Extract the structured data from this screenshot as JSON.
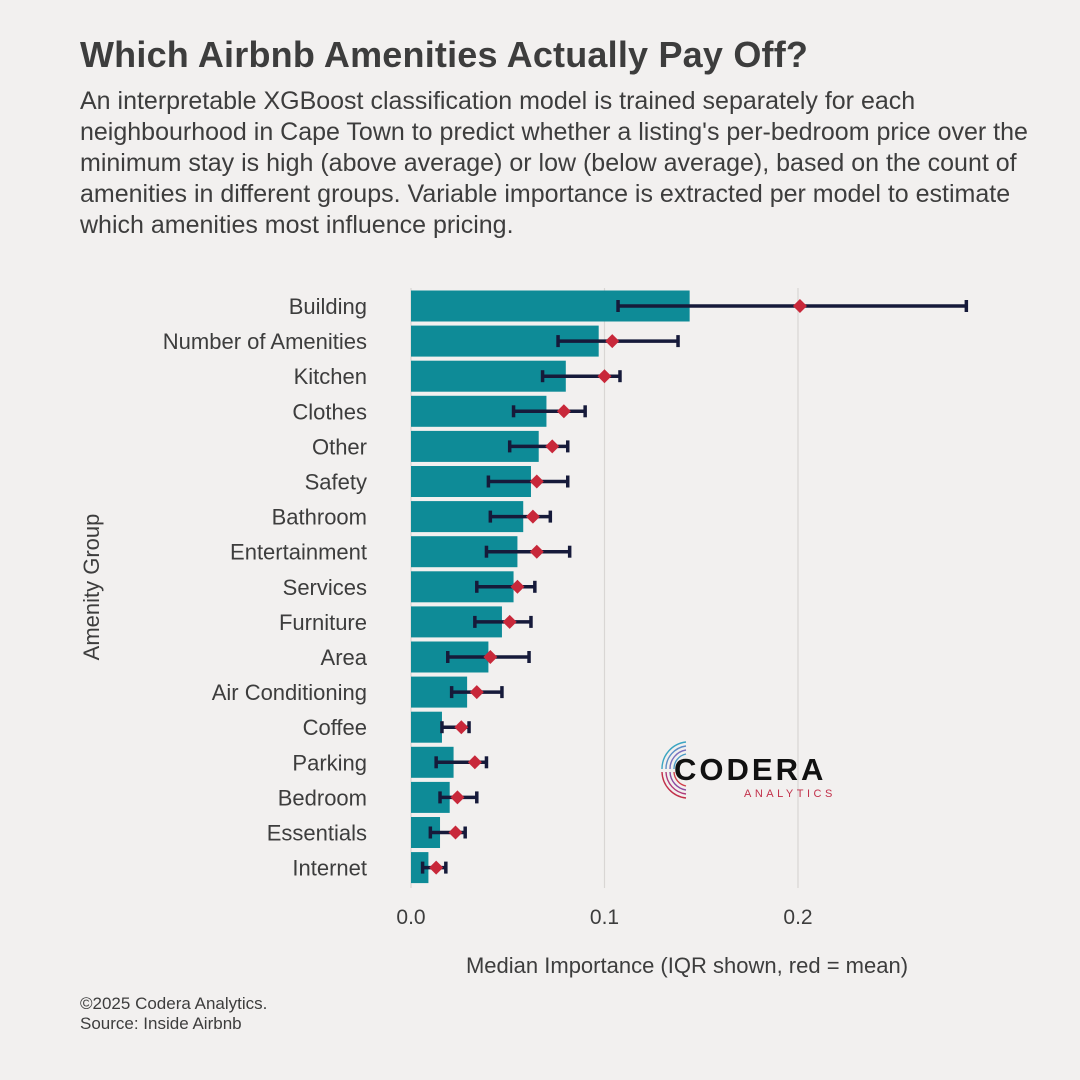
{
  "header": {
    "title": "Which Airbnb Amenities Actually Pay Off?",
    "subtitle": "An interpretable XGBoost classification model is trained separately for each neighbourhood in Cape Town to predict whether a listing's per-bedroom price over the minimum stay is high (above average) or low (below average), based on the count of amenities in different groups. Variable importance is extracted per model to estimate which amenities most influence pricing."
  },
  "footer": {
    "copyright": "©2025 Codera Analytics.",
    "source": "Source: Inside Airbnb"
  },
  "logo": {
    "name": "CODERA",
    "tagline": "ANALYTICS"
  },
  "colors": {
    "background": "#f2f0ef",
    "bar": "#0e8b97",
    "error_bar": "#161a3a",
    "mean_marker": "#c8283a",
    "grid": "#d9d6d4"
  },
  "chart_data": {
    "type": "bar",
    "orientation": "horizontal",
    "xlabel": "Median Importance (IQR shown, red = mean)",
    "ylabel": "Amenity Group",
    "xlim": [
      0,
      0.29
    ],
    "xticks": [
      0.0,
      0.1,
      0.2
    ],
    "xtick_labels": [
      "0.0",
      "0.1",
      "0.2"
    ],
    "grid": "vertical major gridlines",
    "legend": "none",
    "categories": [
      "Building",
      "Number of Amenities",
      "Kitchen",
      "Clothes",
      "Other",
      "Safety",
      "Bathroom",
      "Entertainment",
      "Services",
      "Furniture",
      "Area",
      "Air Conditioning",
      "Coffee",
      "Parking",
      "Bedroom",
      "Essentials",
      "Internet"
    ],
    "series": [
      {
        "name": "median",
        "values": [
          0.144,
          0.097,
          0.08,
          0.07,
          0.066,
          0.062,
          0.058,
          0.055,
          0.053,
          0.047,
          0.04,
          0.029,
          0.016,
          0.022,
          0.02,
          0.015,
          0.009
        ]
      },
      {
        "name": "q1",
        "values": [
          0.107,
          0.076,
          0.068,
          0.053,
          0.051,
          0.04,
          0.041,
          0.039,
          0.034,
          0.033,
          0.019,
          0.021,
          0.016,
          0.013,
          0.015,
          0.01,
          0.006
        ]
      },
      {
        "name": "q3",
        "values": [
          0.287,
          0.138,
          0.108,
          0.09,
          0.081,
          0.081,
          0.072,
          0.082,
          0.064,
          0.062,
          0.061,
          0.047,
          0.03,
          0.039,
          0.034,
          0.028,
          0.018
        ]
      },
      {
        "name": "mean",
        "values": [
          0.201,
          0.104,
          0.1,
          0.079,
          0.073,
          0.065,
          0.063,
          0.065,
          0.055,
          0.051,
          0.041,
          0.034,
          0.026,
          0.033,
          0.024,
          0.023,
          0.013
        ]
      }
    ]
  }
}
